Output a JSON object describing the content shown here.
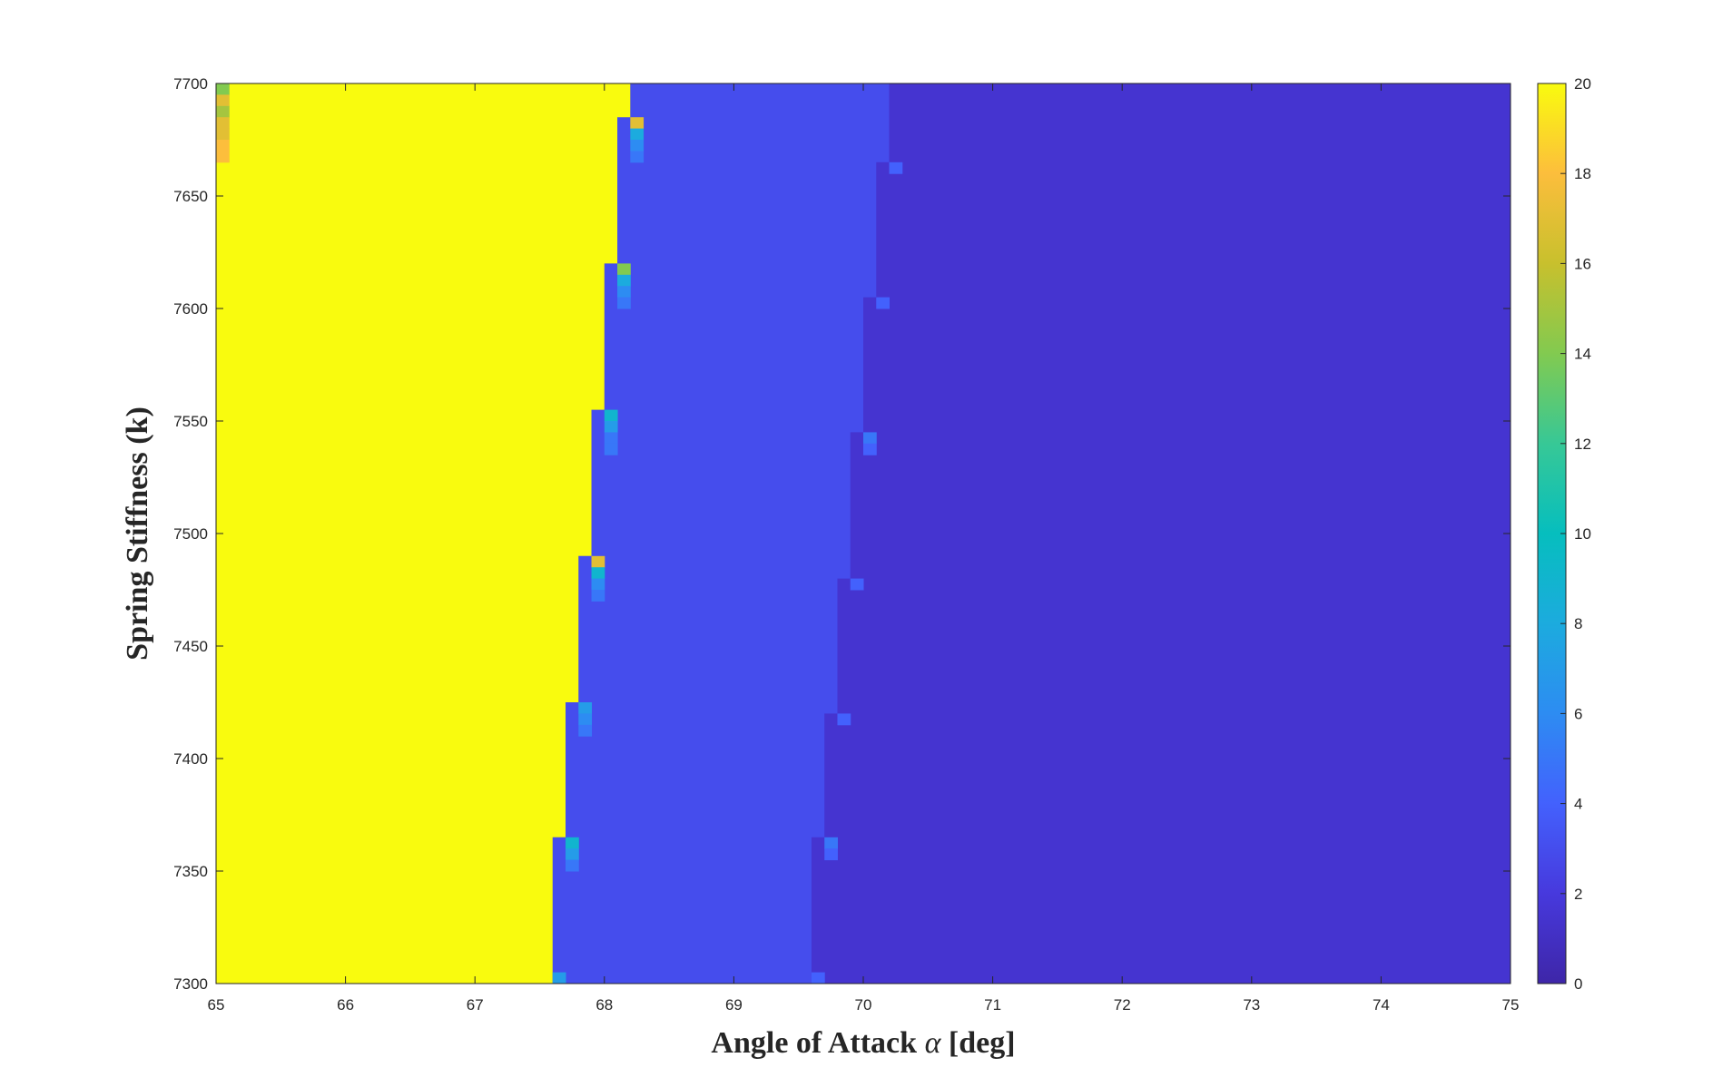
{
  "chart_data": {
    "type": "heatmap",
    "title": "",
    "xlabel": "Angle of Attack",
    "xlabel_symbol": "α",
    "xlabel_unit": "[deg]",
    "ylabel": "Spring Stiffness (k)",
    "xlim": [
      65,
      75
    ],
    "ylim": [
      7300,
      7700
    ],
    "x_ticks": [
      "65",
      "66",
      "67",
      "68",
      "69",
      "70",
      "71",
      "72",
      "73",
      "74",
      "75"
    ],
    "y_ticks": [
      "7300",
      "7350",
      "7400",
      "7450",
      "7500",
      "7550",
      "7600",
      "7650",
      "7700"
    ],
    "colorbar": {
      "colormap": "parula",
      "range": [
        0,
        20
      ],
      "ticks": [
        "0",
        "2",
        "4",
        "6",
        "8",
        "10",
        "12",
        "14",
        "16",
        "18",
        "20"
      ]
    },
    "grid": false,
    "regions": [
      {
        "value": 20,
        "x_from": 65,
        "boundary": [
          [
            7300,
            67.6
          ],
          [
            7365,
            67.6
          ],
          [
            7365,
            67.7
          ],
          [
            7425,
            67.7
          ],
          [
            7425,
            67.8
          ],
          [
            7490,
            67.8
          ],
          [
            7490,
            67.9
          ],
          [
            7555,
            67.9
          ],
          [
            7555,
            68.0
          ],
          [
            7620,
            68.0
          ],
          [
            7620,
            68.1
          ],
          [
            7685,
            68.1
          ],
          [
            7685,
            68.2
          ],
          [
            7700,
            68.2
          ]
        ]
      },
      {
        "value": 3,
        "boundary": [
          [
            7300,
            69.6
          ],
          [
            7365,
            69.6
          ],
          [
            7365,
            69.7
          ],
          [
            7420,
            69.7
          ],
          [
            7420,
            69.8
          ],
          [
            7480,
            69.8
          ],
          [
            7480,
            69.9
          ],
          [
            7545,
            69.9
          ],
          [
            7545,
            70.0
          ],
          [
            7605,
            70.0
          ],
          [
            7605,
            70.1
          ],
          [
            7665,
            70.1
          ],
          [
            7665,
            70.2
          ],
          [
            7700,
            70.2
          ]
        ]
      },
      {
        "value": 1.5,
        "x_to": 75
      }
    ],
    "transition_cells": [
      {
        "x": 67.6,
        "y": 7300,
        "value": 7
      },
      {
        "x": 67.7,
        "y": 7360,
        "value": 9
      },
      {
        "x": 67.7,
        "y": 7355,
        "value": 7
      },
      {
        "x": 67.7,
        "y": 7350,
        "value": 5
      },
      {
        "x": 67.8,
        "y": 7420,
        "value": 7
      },
      {
        "x": 67.8,
        "y": 7415,
        "value": 6
      },
      {
        "x": 67.8,
        "y": 7410,
        "value": 5
      },
      {
        "x": 67.9,
        "y": 7485,
        "value": 17
      },
      {
        "x": 67.9,
        "y": 7480,
        "value": 9
      },
      {
        "x": 67.9,
        "y": 7475,
        "value": 6
      },
      {
        "x": 67.9,
        "y": 7470,
        "value": 5
      },
      {
        "x": 68.0,
        "y": 7550,
        "value": 9
      },
      {
        "x": 68.0,
        "y": 7545,
        "value": 7
      },
      {
        "x": 68.0,
        "y": 7540,
        "value": 5
      },
      {
        "x": 68.0,
        "y": 7535,
        "value": 5
      },
      {
        "x": 68.1,
        "y": 7615,
        "value": 14
      },
      {
        "x": 68.1,
        "y": 7610,
        "value": 8
      },
      {
        "x": 68.1,
        "y": 7605,
        "value": 6
      },
      {
        "x": 68.1,
        "y": 7600,
        "value": 5
      },
      {
        "x": 68.2,
        "y": 7680,
        "value": 17
      },
      {
        "x": 68.2,
        "y": 7675,
        "value": 8
      },
      {
        "x": 68.2,
        "y": 7670,
        "value": 6
      },
      {
        "x": 68.2,
        "y": 7665,
        "value": 5
      },
      {
        "x": 69.6,
        "y": 7300,
        "value": 4
      },
      {
        "x": 69.7,
        "y": 7360,
        "value": 5
      },
      {
        "x": 69.7,
        "y": 7355,
        "value": 4
      },
      {
        "x": 69.8,
        "y": 7415,
        "value": 4
      },
      {
        "x": 69.9,
        "y": 7475,
        "value": 4
      },
      {
        "x": 70.0,
        "y": 7540,
        "value": 5
      },
      {
        "x": 70.0,
        "y": 7535,
        "value": 4
      },
      {
        "x": 70.1,
        "y": 7600,
        "value": 4
      },
      {
        "x": 70.2,
        "y": 7660,
        "value": 4
      },
      {
        "x": 65.0,
        "y": 7695,
        "value": 14
      },
      {
        "x": 65.0,
        "y": 7690,
        "value": 17
      },
      {
        "x": 65.0,
        "y": 7685,
        "value": 15
      },
      {
        "x": 65.0,
        "y": 7680,
        "value": 17
      },
      {
        "x": 65.0,
        "y": 7675,
        "value": 17
      },
      {
        "x": 65.0,
        "y": 7670,
        "value": 18
      },
      {
        "x": 65.0,
        "y": 7665,
        "value": 18
      }
    ]
  }
}
